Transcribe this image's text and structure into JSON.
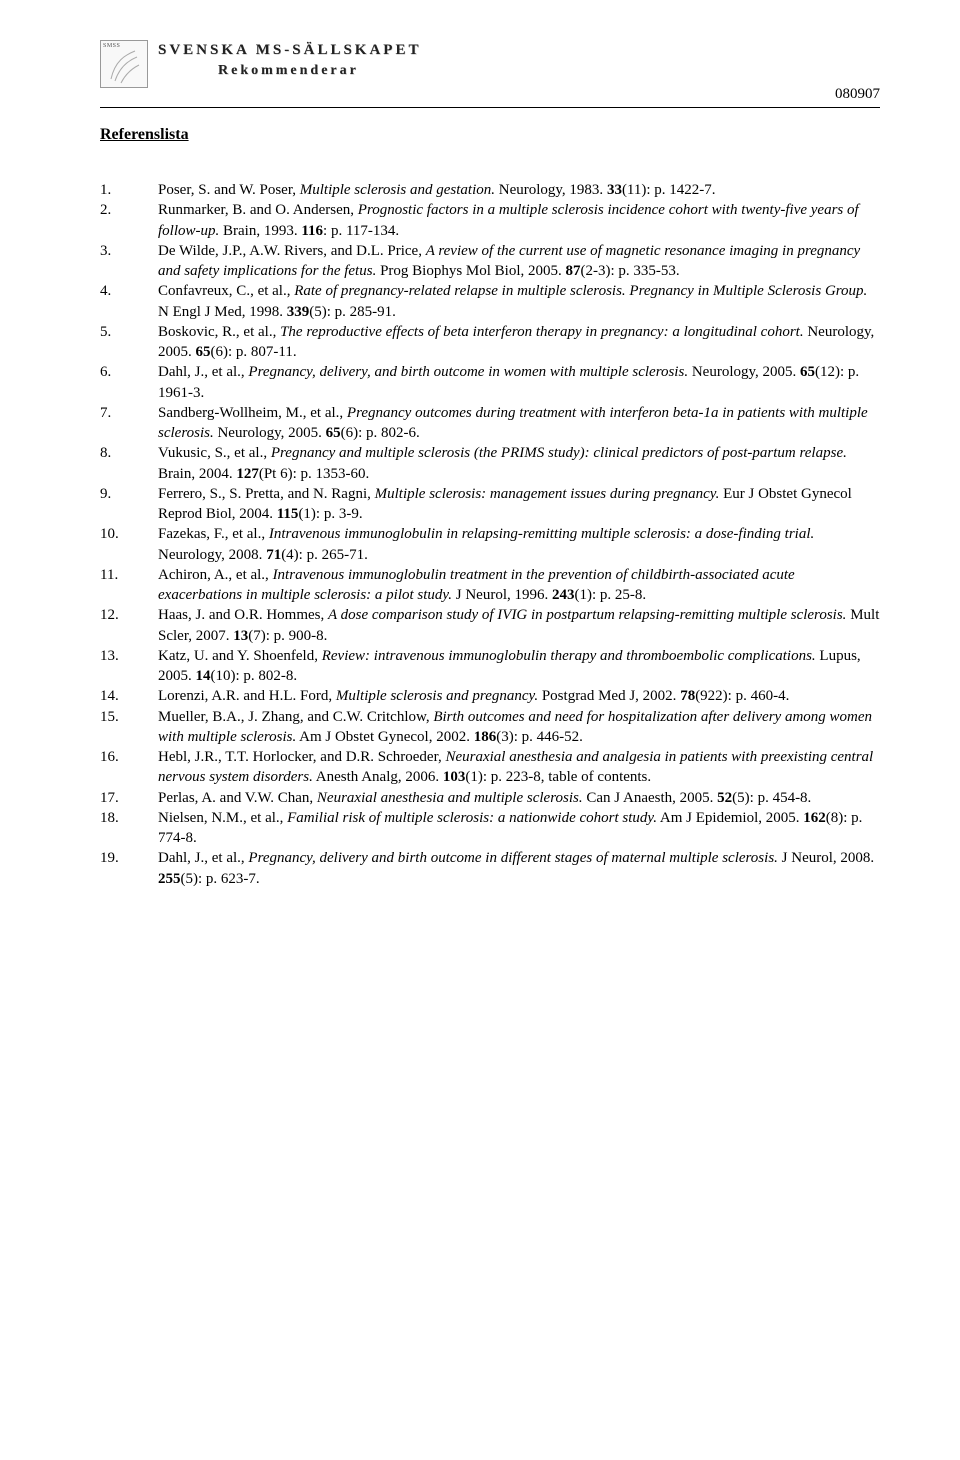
{
  "header": {
    "logo_corner_text": "SMSS",
    "org_name": "SVENSKA MS-SÄLLSKAPET",
    "subtitle": "Rekommenderar",
    "date_code": "080907"
  },
  "section_title": "Referenslista",
  "references": [
    {
      "n": "1.",
      "html": "Poser, S. and W. Poser, <i>Multiple sclerosis and gestation.</i> Neurology, 1983. <b>33</b>(11): p. 1422-7."
    },
    {
      "n": "2.",
      "html": "Runmarker, B. and O. Andersen, <i>Prognostic factors in a multiple sclerosis incidence cohort with twenty-five years of follow-up.</i> Brain, 1993. <b>116</b>: p. 117-134."
    },
    {
      "n": "3.",
      "html": "De Wilde, J.P., A.W. Rivers, and D.L. Price, <i>A review of the current use of magnetic resonance imaging in pregnancy and safety implications for the fetus.</i> Prog Biophys Mol Biol, 2005. <b>87</b>(2-3): p. 335-53."
    },
    {
      "n": "4.",
      "html": "Confavreux, C., et al., <i>Rate of pregnancy-related relapse in multiple sclerosis. Pregnancy in Multiple Sclerosis Group.</i> N Engl J Med, 1998. <b>339</b>(5): p. 285-91."
    },
    {
      "n": "5.",
      "html": "Boskovic, R., et al., <i>The reproductive effects of beta interferon therapy in pregnancy: a longitudinal cohort.</i> Neurology, 2005. <b>65</b>(6): p. 807-11."
    },
    {
      "n": "6.",
      "html": "Dahl, J., et al., <i>Pregnancy, delivery, and birth outcome in women with multiple sclerosis.</i> Neurology, 2005. <b>65</b>(12): p. 1961-3."
    },
    {
      "n": "7.",
      "html": "Sandberg-Wollheim, M., et al., <i>Pregnancy outcomes during treatment with interferon beta-1a in patients with multiple sclerosis.</i> Neurology, 2005. <b>65</b>(6): p. 802-6."
    },
    {
      "n": "8.",
      "html": "Vukusic, S., et al., <i>Pregnancy and multiple sclerosis (the PRIMS study): clinical predictors of post-partum relapse.</i> Brain, 2004. <b>127</b>(Pt 6): p. 1353-60."
    },
    {
      "n": "9.",
      "html": "Ferrero, S., S. Pretta, and N. Ragni, <i>Multiple sclerosis: management issues during pregnancy.</i> Eur J Obstet Gynecol Reprod Biol, 2004. <b>115</b>(1): p. 3-9."
    },
    {
      "n": "10.",
      "html": "Fazekas, F., et al., <i>Intravenous immunoglobulin in relapsing-remitting multiple sclerosis: a dose-finding trial.</i> Neurology, 2008. <b>71</b>(4): p. 265-71."
    },
    {
      "n": "11.",
      "html": "Achiron, A., et al., <i>Intravenous immunoglobulin treatment in the prevention of childbirth-associated acute exacerbations in multiple sclerosis: a pilot study.</i> J Neurol, 1996. <b>243</b>(1): p. 25-8."
    },
    {
      "n": "12.",
      "html": "Haas, J. and O.R. Hommes, <i>A dose comparison study of IVIG in postpartum relapsing-remitting multiple sclerosis.</i> Mult Scler, 2007. <b>13</b>(7): p. 900-8."
    },
    {
      "n": "13.",
      "html": "Katz, U. and Y. Shoenfeld, <i>Review: intravenous immunoglobulin therapy and thromboembolic complications.</i> Lupus, 2005. <b>14</b>(10): p. 802-8."
    },
    {
      "n": "14.",
      "html": "Lorenzi, A.R. and H.L. Ford, <i>Multiple sclerosis and pregnancy.</i> Postgrad Med J, 2002. <b>78</b>(922): p. 460-4."
    },
    {
      "n": "15.",
      "html": "Mueller, B.A., J. Zhang, and C.W. Critchlow, <i>Birth outcomes and need for hospitalization after delivery among women with multiple sclerosis.</i> Am J Obstet Gynecol, 2002. <b>186</b>(3): p. 446-52."
    },
    {
      "n": "16.",
      "html": "Hebl, J.R., T.T. Horlocker, and D.R. Schroeder, <i>Neuraxial anesthesia and analgesia in patients with preexisting central nervous system disorders.</i> Anesth Analg, 2006. <b>103</b>(1): p. 223-8, table of contents."
    },
    {
      "n": "17.",
      "html": "Perlas, A. and V.W. Chan, <i>Neuraxial anesthesia and multiple sclerosis.</i> Can J Anaesth, 2005. <b>52</b>(5): p. 454-8."
    },
    {
      "n": "18.",
      "html": "Nielsen, N.M., et al., <i>Familial risk of multiple sclerosis: a nationwide cohort study.</i> Am J Epidemiol, 2005. <b>162</b>(8): p. 774-8."
    },
    {
      "n": "19.",
      "html": "Dahl, J., et al., <i>Pregnancy, delivery and birth outcome in different stages of maternal multiple sclerosis.</i> J Neurol, 2008. <b>255</b>(5): p. 623-7."
    }
  ]
}
